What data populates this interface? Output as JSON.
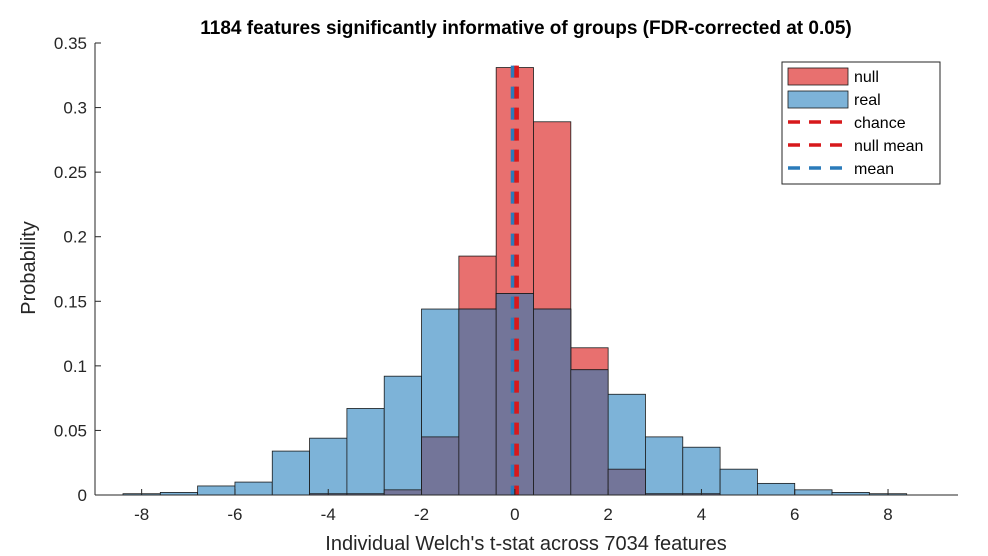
{
  "chart_data": {
    "type": "histogram",
    "title": "1184 features significantly informative of groups (FDR-corrected at 0.05)",
    "xlabel": "Individual Welch's t-stat across 7034 features",
    "ylabel": "Probability",
    "xlim": [
      -9,
      9.5
    ],
    "ylim": [
      0,
      0.35
    ],
    "xticks": [
      -8,
      -6,
      -4,
      -2,
      0,
      2,
      4,
      6,
      8
    ],
    "xtick_labels": [
      "-8",
      "-6",
      "-4",
      "-2",
      "0",
      "2",
      "4",
      "6",
      "8"
    ],
    "yticks": [
      0,
      0.05,
      0.1,
      0.15,
      0.2,
      0.25,
      0.3,
      0.35
    ],
    "ytick_labels": [
      "0",
      "0.05",
      "0.1",
      "0.15",
      "0.2",
      "0.25",
      "0.3",
      "0.35"
    ],
    "colors": {
      "null": "#e8706f",
      "real": "#7db3d8",
      "overlap": "#737599",
      "chance": "#d7191c",
      "null_mean": "#d7191c",
      "mean": "#2b7bba"
    },
    "series": [
      {
        "name": "null",
        "bin_edges": [
          -8.4,
          -7.6,
          -6.8,
          -6.0,
          -5.2,
          -4.4,
          -3.6,
          -2.8,
          -2.0,
          -1.2,
          -0.4,
          0.4,
          1.2,
          2.0,
          2.8,
          3.6,
          4.4,
          5.2,
          6.0,
          6.8,
          7.6,
          8.4
        ],
        "values": [
          0,
          0,
          0,
          0,
          0,
          0.001,
          0.001,
          0.004,
          0.045,
          0.185,
          0.331,
          0.289,
          0.114,
          0.02,
          0.001,
          0.001,
          0,
          0,
          0,
          0,
          0
        ]
      },
      {
        "name": "real",
        "bin_edges": [
          -8.4,
          -7.6,
          -6.8,
          -6.0,
          -5.2,
          -4.4,
          -3.6,
          -2.8,
          -2.0,
          -1.2,
          -0.4,
          0.4,
          1.2,
          2.0,
          2.8,
          3.6,
          4.4,
          5.2,
          6.0,
          6.8,
          7.6,
          8.4
        ],
        "values": [
          0.001,
          0.002,
          0.007,
          0.01,
          0.034,
          0.044,
          0.067,
          0.092,
          0.144,
          0.144,
          0.156,
          0.144,
          0.097,
          0.078,
          0.045,
          0.037,
          0.02,
          0.009,
          0.004,
          0.002,
          0.001
        ]
      }
    ],
    "vlines": [
      {
        "name": "chance",
        "x": 0
      },
      {
        "name": "null mean",
        "x": 0.05
      },
      {
        "name": "mean",
        "x": -0.05
      }
    ],
    "legend": {
      "position": "top-right",
      "entries": [
        {
          "label": "null",
          "kind": "patch",
          "color_key": "null"
        },
        {
          "label": "real",
          "kind": "patch",
          "color_key": "real"
        },
        {
          "label": "chance",
          "kind": "dashed-line",
          "color_key": "chance"
        },
        {
          "label": "null mean",
          "kind": "dashed-line",
          "color_key": "null_mean"
        },
        {
          "label": "mean",
          "kind": "dashed-line",
          "color_key": "mean"
        }
      ]
    }
  }
}
